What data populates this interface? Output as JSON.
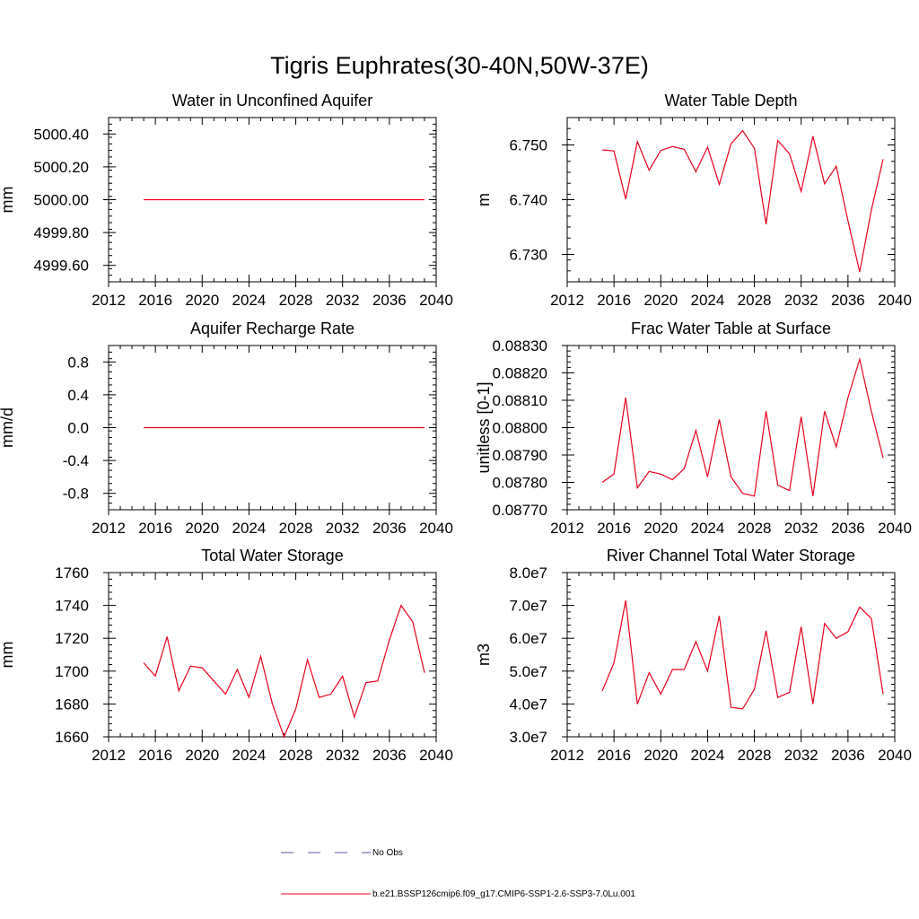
{
  "figure": {
    "title": "Tigris Euphrates(30-40N,50W-37E)"
  },
  "legend": [
    {
      "label": "No Obs",
      "color": "#5a5aa6",
      "dash": true
    },
    {
      "label": "b.e21.BSSP126cmip6.f09_g17.CMIP6-SSP1-2.6-SSP3-7.0Lu.001",
      "color": "#e8001c",
      "dash": false
    }
  ],
  "series_color": "#e8001c",
  "chart_data": [
    {
      "type": "line",
      "title": "Water in Unconfined Aquifer",
      "ylabel": "mm",
      "xlim": [
        2012,
        2040
      ],
      "ylim": [
        4999.5,
        5000.5
      ],
      "xticks": [
        "2012",
        "2016",
        "2020",
        "2024",
        "2028",
        "2032",
        "2036",
        "2040"
      ],
      "yticks": [
        {
          "v": 4999.6,
          "label": "4999.60"
        },
        {
          "v": 4999.8,
          "label": "4999.80"
        },
        {
          "v": 5000.0,
          "label": "5000.00"
        },
        {
          "v": 5000.2,
          "label": "5000.20"
        },
        {
          "v": 5000.4,
          "label": "5000.40"
        }
      ],
      "x": [
        2015,
        2016,
        2017,
        2018,
        2019,
        2020,
        2021,
        2022,
        2023,
        2024,
        2025,
        2026,
        2027,
        2028,
        2029,
        2030,
        2031,
        2032,
        2033,
        2034,
        2035,
        2036,
        2037,
        2038,
        2039
      ],
      "values": [
        5000,
        5000,
        5000,
        5000,
        5000,
        5000,
        5000,
        5000,
        5000,
        5000,
        5000,
        5000,
        5000,
        5000,
        5000,
        5000,
        5000,
        5000,
        5000,
        5000,
        5000,
        5000,
        5000,
        5000,
        5000
      ]
    },
    {
      "type": "line",
      "title": "Water Table Depth",
      "ylabel": "m",
      "xlim": [
        2012,
        2040
      ],
      "ylim": [
        6.725,
        6.755
      ],
      "xticks": [
        "2012",
        "2016",
        "2020",
        "2024",
        "2028",
        "2032",
        "2036",
        "2040"
      ],
      "yticks": [
        {
          "v": 6.73,
          "label": "6.730"
        },
        {
          "v": 6.74,
          "label": "6.740"
        },
        {
          "v": 6.75,
          "label": "6.750"
        }
      ],
      "x": [
        2015,
        2016,
        2017,
        2018,
        2019,
        2020,
        2021,
        2022,
        2023,
        2024,
        2025,
        2026,
        2027,
        2028,
        2029,
        2030,
        2031,
        2032,
        2033,
        2034,
        2035,
        2036,
        2037,
        2038,
        2039
      ],
      "values": [
        6.7491,
        6.7489,
        6.7401,
        6.7506,
        6.7454,
        6.749,
        6.7497,
        6.7492,
        6.7451,
        6.7496,
        6.7428,
        6.7502,
        6.7526,
        6.7494,
        6.7355,
        6.7508,
        6.7484,
        6.7415,
        6.7516,
        6.7429,
        6.7461,
        6.7361,
        6.7268,
        6.7381,
        6.7474
      ]
    },
    {
      "type": "line",
      "title": "Aquifer Recharge Rate",
      "ylabel": "mm/d",
      "xlim": [
        2012,
        2040
      ],
      "ylim": [
        -1.0,
        1.0
      ],
      "xticks": [
        "2012",
        "2016",
        "2020",
        "2024",
        "2028",
        "2032",
        "2036",
        "2040"
      ],
      "yticks": [
        {
          "v": -0.8,
          "label": "-0.8"
        },
        {
          "v": -0.4,
          "label": "-0.4"
        },
        {
          "v": 0.0,
          "label": "0.0"
        },
        {
          "v": 0.4,
          "label": "0.4"
        },
        {
          "v": 0.8,
          "label": "0.8"
        }
      ],
      "x": [
        2015,
        2016,
        2017,
        2018,
        2019,
        2020,
        2021,
        2022,
        2023,
        2024,
        2025,
        2026,
        2027,
        2028,
        2029,
        2030,
        2031,
        2032,
        2033,
        2034,
        2035,
        2036,
        2037,
        2038,
        2039
      ],
      "values": [
        0,
        0,
        0,
        0,
        0,
        0,
        0,
        0,
        0,
        0,
        0,
        0,
        0,
        0,
        0,
        0,
        0,
        0,
        0,
        0,
        0,
        0,
        0,
        0,
        0
      ]
    },
    {
      "type": "line",
      "title": "Frac Water Table at Surface",
      "ylabel": "unitless [0-1]",
      "xlim": [
        2012,
        2040
      ],
      "ylim": [
        0.0877,
        0.0883
      ],
      "xticks": [
        "2012",
        "2016",
        "2020",
        "2024",
        "2028",
        "2032",
        "2036",
        "2040"
      ],
      "yticks": [
        {
          "v": 0.0877,
          "label": "0.08770"
        },
        {
          "v": 0.0878,
          "label": "0.08780"
        },
        {
          "v": 0.0879,
          "label": "0.08790"
        },
        {
          "v": 0.088,
          "label": "0.08800"
        },
        {
          "v": 0.0881,
          "label": "0.08810"
        },
        {
          "v": 0.0882,
          "label": "0.08820"
        },
        {
          "v": 0.0883,
          "label": "0.08830"
        }
      ],
      "x": [
        2015,
        2016,
        2017,
        2018,
        2019,
        2020,
        2021,
        2022,
        2023,
        2024,
        2025,
        2026,
        2027,
        2028,
        2029,
        2030,
        2031,
        2032,
        2033,
        2034,
        2035,
        2036,
        2037,
        2038,
        2039
      ],
      "values": [
        0.0878,
        0.08783,
        0.08811,
        0.08778,
        0.08784,
        0.08783,
        0.08781,
        0.08785,
        0.08799,
        0.08782,
        0.08803,
        0.08782,
        0.08776,
        0.08775,
        0.08806,
        0.08779,
        0.08777,
        0.08804,
        0.08775,
        0.08806,
        0.08793,
        0.08811,
        0.08825,
        0.08806,
        0.08789
      ]
    },
    {
      "type": "line",
      "title": "Total Water Storage",
      "ylabel": "mm",
      "xlim": [
        2012,
        2040
      ],
      "ylim": [
        1660,
        1760
      ],
      "xticks": [
        "2012",
        "2016",
        "2020",
        "2024",
        "2028",
        "2032",
        "2036",
        "2040"
      ],
      "yticks": [
        {
          "v": 1660,
          "label": "1660"
        },
        {
          "v": 1680,
          "label": "1680"
        },
        {
          "v": 1700,
          "label": "1700"
        },
        {
          "v": 1720,
          "label": "1720"
        },
        {
          "v": 1740,
          "label": "1740"
        },
        {
          "v": 1760,
          "label": "1760"
        }
      ],
      "x": [
        2015,
        2016,
        2017,
        2018,
        2019,
        2020,
        2021,
        2022,
        2023,
        2024,
        2025,
        2026,
        2027,
        2028,
        2029,
        2030,
        2031,
        2032,
        2033,
        2034,
        2035,
        2036,
        2037,
        2038,
        2039
      ],
      "values": [
        1705,
        1697,
        1721,
        1688,
        1703,
        1702,
        1694,
        1686,
        1701,
        1684,
        1709,
        1680,
        1660,
        1677,
        1707,
        1684,
        1686,
        1697,
        1672,
        1693,
        1694,
        1719,
        1740,
        1730,
        1699
      ]
    },
    {
      "type": "line",
      "title": "River Channel Total Water Storage",
      "ylabel": "m3",
      "xlim": [
        2012,
        2040
      ],
      "ylim": [
        30000000,
        80000000
      ],
      "xticks": [
        "2012",
        "2016",
        "2020",
        "2024",
        "2028",
        "2032",
        "2036",
        "2040"
      ],
      "yticks": [
        {
          "v": 30000000,
          "label": "3.0e7"
        },
        {
          "v": 40000000,
          "label": "4.0e7"
        },
        {
          "v": 50000000,
          "label": "5.0e7"
        },
        {
          "v": 60000000,
          "label": "6.0e7"
        },
        {
          "v": 70000000,
          "label": "7.0e7"
        },
        {
          "v": 80000000,
          "label": "8.0e7"
        }
      ],
      "x": [
        2015,
        2016,
        2017,
        2018,
        2019,
        2020,
        2021,
        2022,
        2023,
        2024,
        2025,
        2026,
        2027,
        2028,
        2029,
        2030,
        2031,
        2032,
        2033,
        2034,
        2035,
        2036,
        2037,
        2038,
        2039
      ],
      "values": [
        44000000,
        52500000,
        71500000,
        40000000,
        49500000,
        43000000,
        50500000,
        50500000,
        59000000,
        50000000,
        66800000,
        39000000,
        38500000,
        44500000,
        62300000,
        42000000,
        43500000,
        63500000,
        40000000,
        64500000,
        60000000,
        62000000,
        69500000,
        66000000,
        43000000
      ]
    }
  ]
}
